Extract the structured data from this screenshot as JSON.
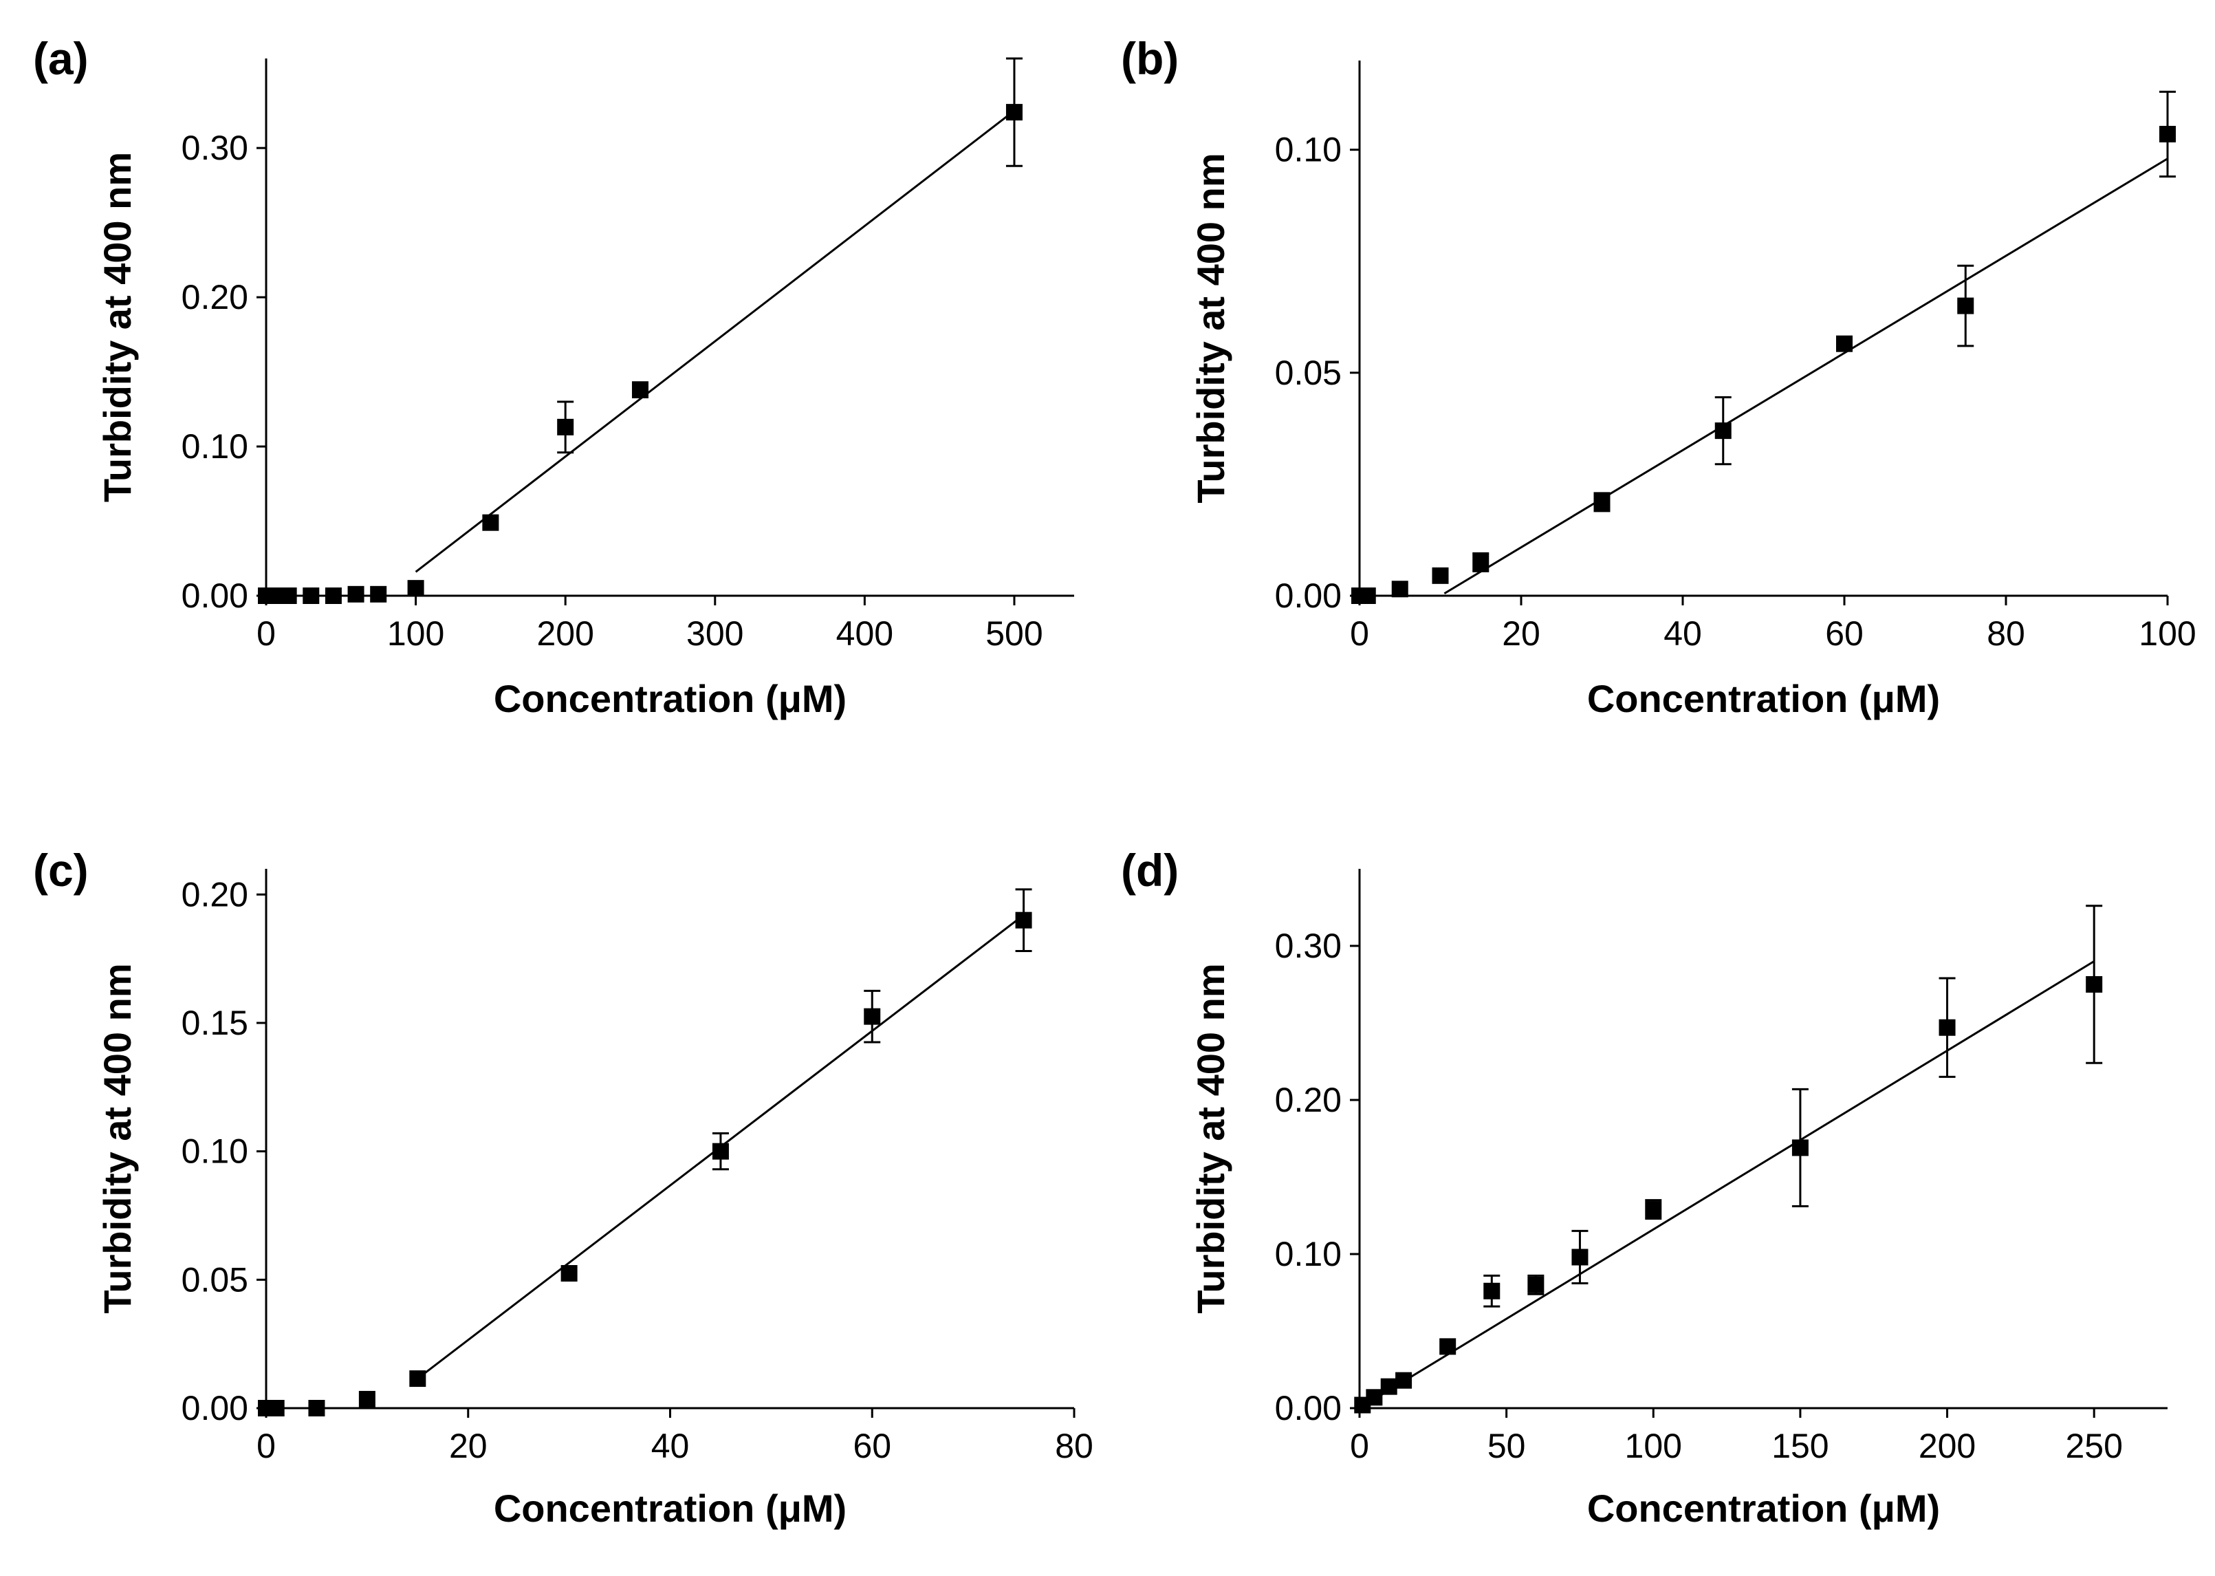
{
  "chart_data": [
    {
      "type": "scatter",
      "panel_label": "(a)",
      "xlabel": "Concentration (μM)",
      "ylabel": "Turbidity at 400 nm",
      "xlim": [
        0,
        540
      ],
      "ylim": [
        0,
        0.36
      ],
      "xticks": [
        0,
        100,
        200,
        300,
        400,
        500
      ],
      "xtick_labels": [
        "0",
        "100",
        "200",
        "300",
        "400",
        "500"
      ],
      "yticks": [
        0,
        0.1,
        0.2,
        0.3
      ],
      "ytick_labels": [
        "0.00",
        "0.10",
        "0.20",
        "0.30"
      ],
      "points": [
        {
          "x": 0,
          "y": 0.0,
          "err": 0
        },
        {
          "x": 5,
          "y": 0.0,
          "err": 0
        },
        {
          "x": 10,
          "y": 0.0,
          "err": 0
        },
        {
          "x": 15,
          "y": 0.0,
          "err": 0
        },
        {
          "x": 30,
          "y": 0.0,
          "err": 0
        },
        {
          "x": 45,
          "y": 0.0,
          "err": 0
        },
        {
          "x": 60,
          "y": 0.001,
          "err": 0
        },
        {
          "x": 75,
          "y": 0.001,
          "err": 0
        },
        {
          "x": 100,
          "y": 0.005,
          "err": 0
        },
        {
          "x": 150,
          "y": 0.049,
          "err": 0
        },
        {
          "x": 200,
          "y": 0.113,
          "err": 0.017
        },
        {
          "x": 250,
          "y": 0.138,
          "err": 0.005
        },
        {
          "x": 500,
          "y": 0.324,
          "err": 0.036
        }
      ],
      "fit": {
        "x": [
          100,
          500
        ],
        "y": [
          0.016,
          0.325
        ]
      }
    },
    {
      "type": "scatter",
      "panel_label": "(b)",
      "xlabel": "Concentration (μM)",
      "ylabel": "Turbidity at 400 nm",
      "xlim": [
        0,
        100
      ],
      "ylim": [
        0,
        0.12
      ],
      "xticks": [
        0,
        20,
        40,
        60,
        80,
        100
      ],
      "xtick_labels": [
        "0",
        "20",
        "40",
        "60",
        "80",
        "100"
      ],
      "yticks": [
        0,
        0.05,
        0.1
      ],
      "ytick_labels": [
        "0.00",
        "0.05",
        "0.10"
      ],
      "points": [
        {
          "x": 0,
          "y": 0.0,
          "err": 0
        },
        {
          "x": 1,
          "y": 0.0,
          "err": 0
        },
        {
          "x": 5,
          "y": 0.0015,
          "err": 0
        },
        {
          "x": 10,
          "y": 0.0045,
          "err": 0
        },
        {
          "x": 15,
          "y": 0.0075,
          "err": 0.002
        },
        {
          "x": 30,
          "y": 0.021,
          "err": 0.002
        },
        {
          "x": 45,
          "y": 0.037,
          "err": 0.0075
        },
        {
          "x": 60,
          "y": 0.0565,
          "err": 0.001
        },
        {
          "x": 75,
          "y": 0.065,
          "err": 0.009
        },
        {
          "x": 100,
          "y": 0.1035,
          "err": 0.0095
        }
      ],
      "fit": {
        "x": [
          10.5,
          100
        ],
        "y": [
          0.0005,
          0.098
        ]
      }
    },
    {
      "type": "scatter",
      "panel_label": "(c)",
      "xlabel": "Concentration (μM)",
      "ylabel": "Turbidity at 400 nm",
      "xlim": [
        0,
        80
      ],
      "ylim": [
        0,
        0.21
      ],
      "xticks": [
        0,
        20,
        40,
        60,
        80
      ],
      "xtick_labels": [
        "0",
        "20",
        "40",
        "60",
        "80"
      ],
      "yticks": [
        0,
        0.05,
        0.1,
        0.15,
        0.2
      ],
      "ytick_labels": [
        "0.00",
        "0.05",
        "0.10",
        "0.15",
        "0.20"
      ],
      "points": [
        {
          "x": 0,
          "y": 0.0,
          "err": 0
        },
        {
          "x": 1,
          "y": 0.0,
          "err": 0
        },
        {
          "x": 5,
          "y": 0.0,
          "err": 0
        },
        {
          "x": 10,
          "y": 0.0035,
          "err": 0
        },
        {
          "x": 15,
          "y": 0.0115,
          "err": 0
        },
        {
          "x": 30,
          "y": 0.0525,
          "err": 0
        },
        {
          "x": 45,
          "y": 0.1,
          "err": 0.007
        },
        {
          "x": 60,
          "y": 0.1525,
          "err": 0.01
        },
        {
          "x": 75,
          "y": 0.19,
          "err": 0.012
        }
      ],
      "fit": {
        "x": [
          15,
          75
        ],
        "y": [
          0.0115,
          0.192
        ]
      }
    },
    {
      "type": "scatter",
      "panel_label": "(d)",
      "xlabel": "Concentration (μM)",
      "ylabel": "Turbidity at 400 nm",
      "xlim": [
        0,
        275
      ],
      "ylim": [
        0,
        0.35
      ],
      "xticks": [
        0,
        50,
        100,
        150,
        200,
        250
      ],
      "xtick_labels": [
        "0",
        "50",
        "100",
        "150",
        "200",
        "250"
      ],
      "yticks": [
        0,
        0.1,
        0.2,
        0.3
      ],
      "ytick_labels": [
        "0.00",
        "0.10",
        "0.20",
        "0.30"
      ],
      "points": [
        {
          "x": 1,
          "y": 0.002,
          "err": 0
        },
        {
          "x": 5,
          "y": 0.007,
          "err": 0
        },
        {
          "x": 10,
          "y": 0.014,
          "err": 0
        },
        {
          "x": 15,
          "y": 0.018,
          "err": 0
        },
        {
          "x": 30,
          "y": 0.04,
          "err": 0
        },
        {
          "x": 45,
          "y": 0.076,
          "err": 0.01
        },
        {
          "x": 60,
          "y": 0.08,
          "err": 0.006
        },
        {
          "x": 75,
          "y": 0.098,
          "err": 0.017
        },
        {
          "x": 100,
          "y": 0.129,
          "err": 0.006
        },
        {
          "x": 150,
          "y": 0.169,
          "err": 0.038
        },
        {
          "x": 200,
          "y": 0.247,
          "err": 0.032
        },
        {
          "x": 250,
          "y": 0.275,
          "err": 0.051
        }
      ],
      "fit": {
        "x": [
          0,
          250
        ],
        "y": [
          0.0,
          0.29
        ]
      }
    }
  ]
}
